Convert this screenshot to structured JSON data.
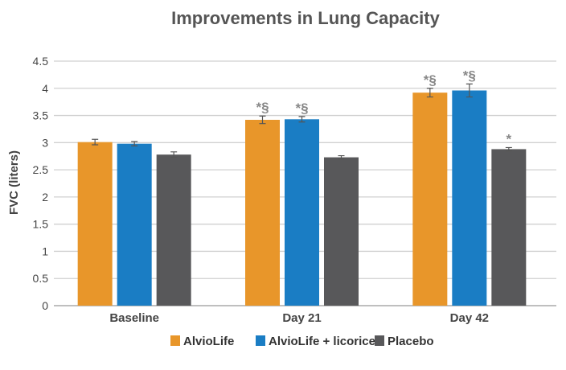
{
  "chart_data": {
    "type": "bar",
    "title": "Improvements in Lung Capacity",
    "xlabel": "",
    "ylabel": "FVC (liters)",
    "ylim": [
      0,
      4.5
    ],
    "yticks": [
      "0",
      "0.5",
      "1",
      "1.5",
      "2",
      "2.5",
      "3",
      "3.5",
      "4",
      "4.5"
    ],
    "grid": true,
    "legend_position": "bottom",
    "categories": [
      "Baseline",
      "Day 21",
      "Day 42"
    ],
    "series": [
      {
        "name": "AlvioLife",
        "color": "#E8962A",
        "values": [
          3.01,
          3.42,
          3.92
        ],
        "errors": [
          0.05,
          0.07,
          0.08
        ],
        "annotations": [
          "",
          "*§",
          "*§"
        ]
      },
      {
        "name": "AlvioLife + licorice",
        "color": "#1A7DC4",
        "values": [
          2.98,
          3.43,
          3.96
        ],
        "errors": [
          0.04,
          0.05,
          0.12
        ],
        "annotations": [
          "",
          "*§",
          "*§"
        ]
      },
      {
        "name": "Placebo",
        "color": "#58585A",
        "values": [
          2.78,
          2.73,
          2.88
        ],
        "errors": [
          0.05,
          0.03,
          0.03
        ],
        "annotations": [
          "",
          "",
          "*"
        ]
      }
    ]
  }
}
